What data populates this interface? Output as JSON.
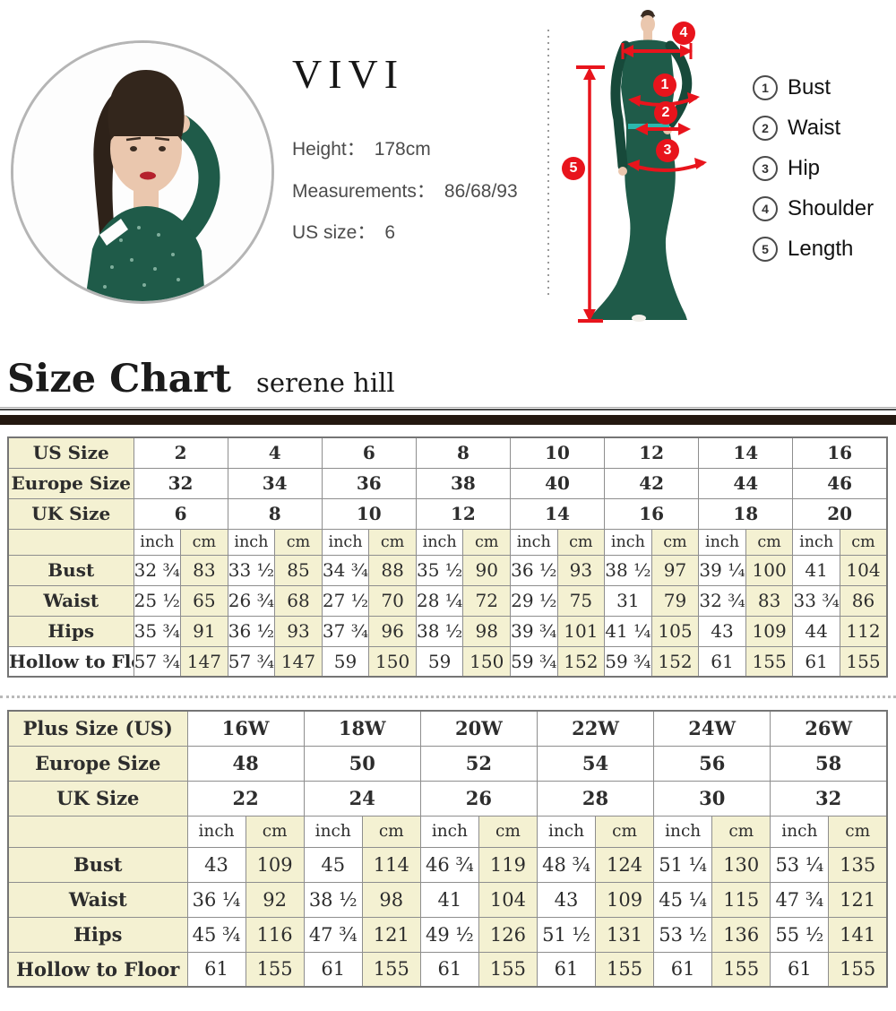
{
  "profile": {
    "name": "VIVI",
    "lines": [
      {
        "label": "Height：",
        "value": "178cm"
      },
      {
        "label": "Measurements：",
        "value": "86/68/93"
      },
      {
        "label": "US size：",
        "value": "6"
      }
    ]
  },
  "diagram": {
    "markers": [
      {
        "num": "1",
        "meaning": "Bust"
      },
      {
        "num": "2",
        "meaning": "Waist"
      },
      {
        "num": "3",
        "meaning": "Hip"
      },
      {
        "num": "4",
        "meaning": "Shoulder"
      },
      {
        "num": "5",
        "meaning": "Length"
      }
    ],
    "legend": [
      {
        "num": "1",
        "label": "Bust"
      },
      {
        "num": "2",
        "label": "Waist"
      },
      {
        "num": "3",
        "label": "Hip"
      },
      {
        "num": "4",
        "label": "Shoulder"
      },
      {
        "num": "5",
        "label": "Length"
      }
    ]
  },
  "header": {
    "title": "Size Chart",
    "subtitle": "serene hill"
  },
  "colors": {
    "accent_red": "#e8141c",
    "cream": "#f4f1d2",
    "rule_brown": "#241810",
    "dress_green": "#1f5b49",
    "belt_teal": "#2cb8ae"
  },
  "regular_table": {
    "size_rows": [
      {
        "label": "US Size",
        "values": [
          "2",
          "4",
          "6",
          "8",
          "10",
          "12",
          "14",
          "16"
        ]
      },
      {
        "label": "Europe Size",
        "values": [
          "32",
          "34",
          "36",
          "38",
          "40",
          "42",
          "44",
          "46"
        ]
      },
      {
        "label": "UK Size",
        "values": [
          "6",
          "8",
          "10",
          "12",
          "14",
          "16",
          "18",
          "20"
        ]
      }
    ],
    "unit_labels": [
      "inch",
      "cm"
    ],
    "measure_rows": [
      {
        "label": "Bust",
        "values": [
          [
            "32 ¾",
            "83"
          ],
          [
            "33 ½",
            "85"
          ],
          [
            "34 ¾",
            "88"
          ],
          [
            "35 ½",
            "90"
          ],
          [
            "36 ½",
            "93"
          ],
          [
            "38 ½",
            "97"
          ],
          [
            "39 ¼",
            "100"
          ],
          [
            "41",
            "104"
          ]
        ]
      },
      {
        "label": "Waist",
        "values": [
          [
            "25 ½",
            "65"
          ],
          [
            "26 ¾",
            "68"
          ],
          [
            "27 ½",
            "70"
          ],
          [
            "28 ¼",
            "72"
          ],
          [
            "29 ½",
            "75"
          ],
          [
            "31",
            "79"
          ],
          [
            "32 ¾",
            "83"
          ],
          [
            "33 ¾",
            "86"
          ]
        ]
      },
      {
        "label": "Hips",
        "values": [
          [
            "35 ¾",
            "91"
          ],
          [
            "36 ½",
            "93"
          ],
          [
            "37 ¾",
            "96"
          ],
          [
            "38 ½",
            "98"
          ],
          [
            "39 ¾",
            "101"
          ],
          [
            "41 ¼",
            "105"
          ],
          [
            "43",
            "109"
          ],
          [
            "44",
            "112"
          ]
        ]
      },
      {
        "label": "Hollow to Floor",
        "values": [
          [
            "57 ¾",
            "147"
          ],
          [
            "57 ¾",
            "147"
          ],
          [
            "59",
            "150"
          ],
          [
            "59",
            "150"
          ],
          [
            "59 ¾",
            "152"
          ],
          [
            "59 ¾",
            "152"
          ],
          [
            "61",
            "155"
          ],
          [
            "61",
            "155"
          ]
        ]
      }
    ],
    "white_label_last_row": true,
    "label_col_width": 140
  },
  "plus_table": {
    "size_rows": [
      {
        "label": "Plus Size (US)",
        "values": [
          "16W",
          "18W",
          "20W",
          "22W",
          "24W",
          "26W"
        ]
      },
      {
        "label": "Europe Size",
        "values": [
          "48",
          "50",
          "52",
          "54",
          "56",
          "58"
        ]
      },
      {
        "label": "UK Size",
        "values": [
          "22",
          "24",
          "26",
          "28",
          "30",
          "32"
        ]
      }
    ],
    "unit_labels": [
      "inch",
      "cm"
    ],
    "measure_rows": [
      {
        "label": "Bust",
        "values": [
          [
            "43",
            "109"
          ],
          [
            "45",
            "114"
          ],
          [
            "46 ¾",
            "119"
          ],
          [
            "48 ¾",
            "124"
          ],
          [
            "51 ¼",
            "130"
          ],
          [
            "53 ¼",
            "135"
          ]
        ]
      },
      {
        "label": "Waist",
        "values": [
          [
            "36 ¼",
            "92"
          ],
          [
            "38 ½",
            "98"
          ],
          [
            "41",
            "104"
          ],
          [
            "43",
            "109"
          ],
          [
            "45 ¼",
            "115"
          ],
          [
            "47 ¾",
            "121"
          ]
        ]
      },
      {
        "label": "Hips",
        "values": [
          [
            "45 ¾",
            "116"
          ],
          [
            "47 ¾",
            "121"
          ],
          [
            "49 ½",
            "126"
          ],
          [
            "51 ½",
            "131"
          ],
          [
            "53 ½",
            "136"
          ],
          [
            "55 ½",
            "141"
          ]
        ]
      },
      {
        "label": "Hollow to Floor",
        "values": [
          [
            "61",
            "155"
          ],
          [
            "61",
            "155"
          ],
          [
            "61",
            "155"
          ],
          [
            "61",
            "155"
          ],
          [
            "61",
            "155"
          ],
          [
            "61",
            "155"
          ]
        ]
      }
    ],
    "white_label_last_row": false,
    "label_col_width": 200
  }
}
